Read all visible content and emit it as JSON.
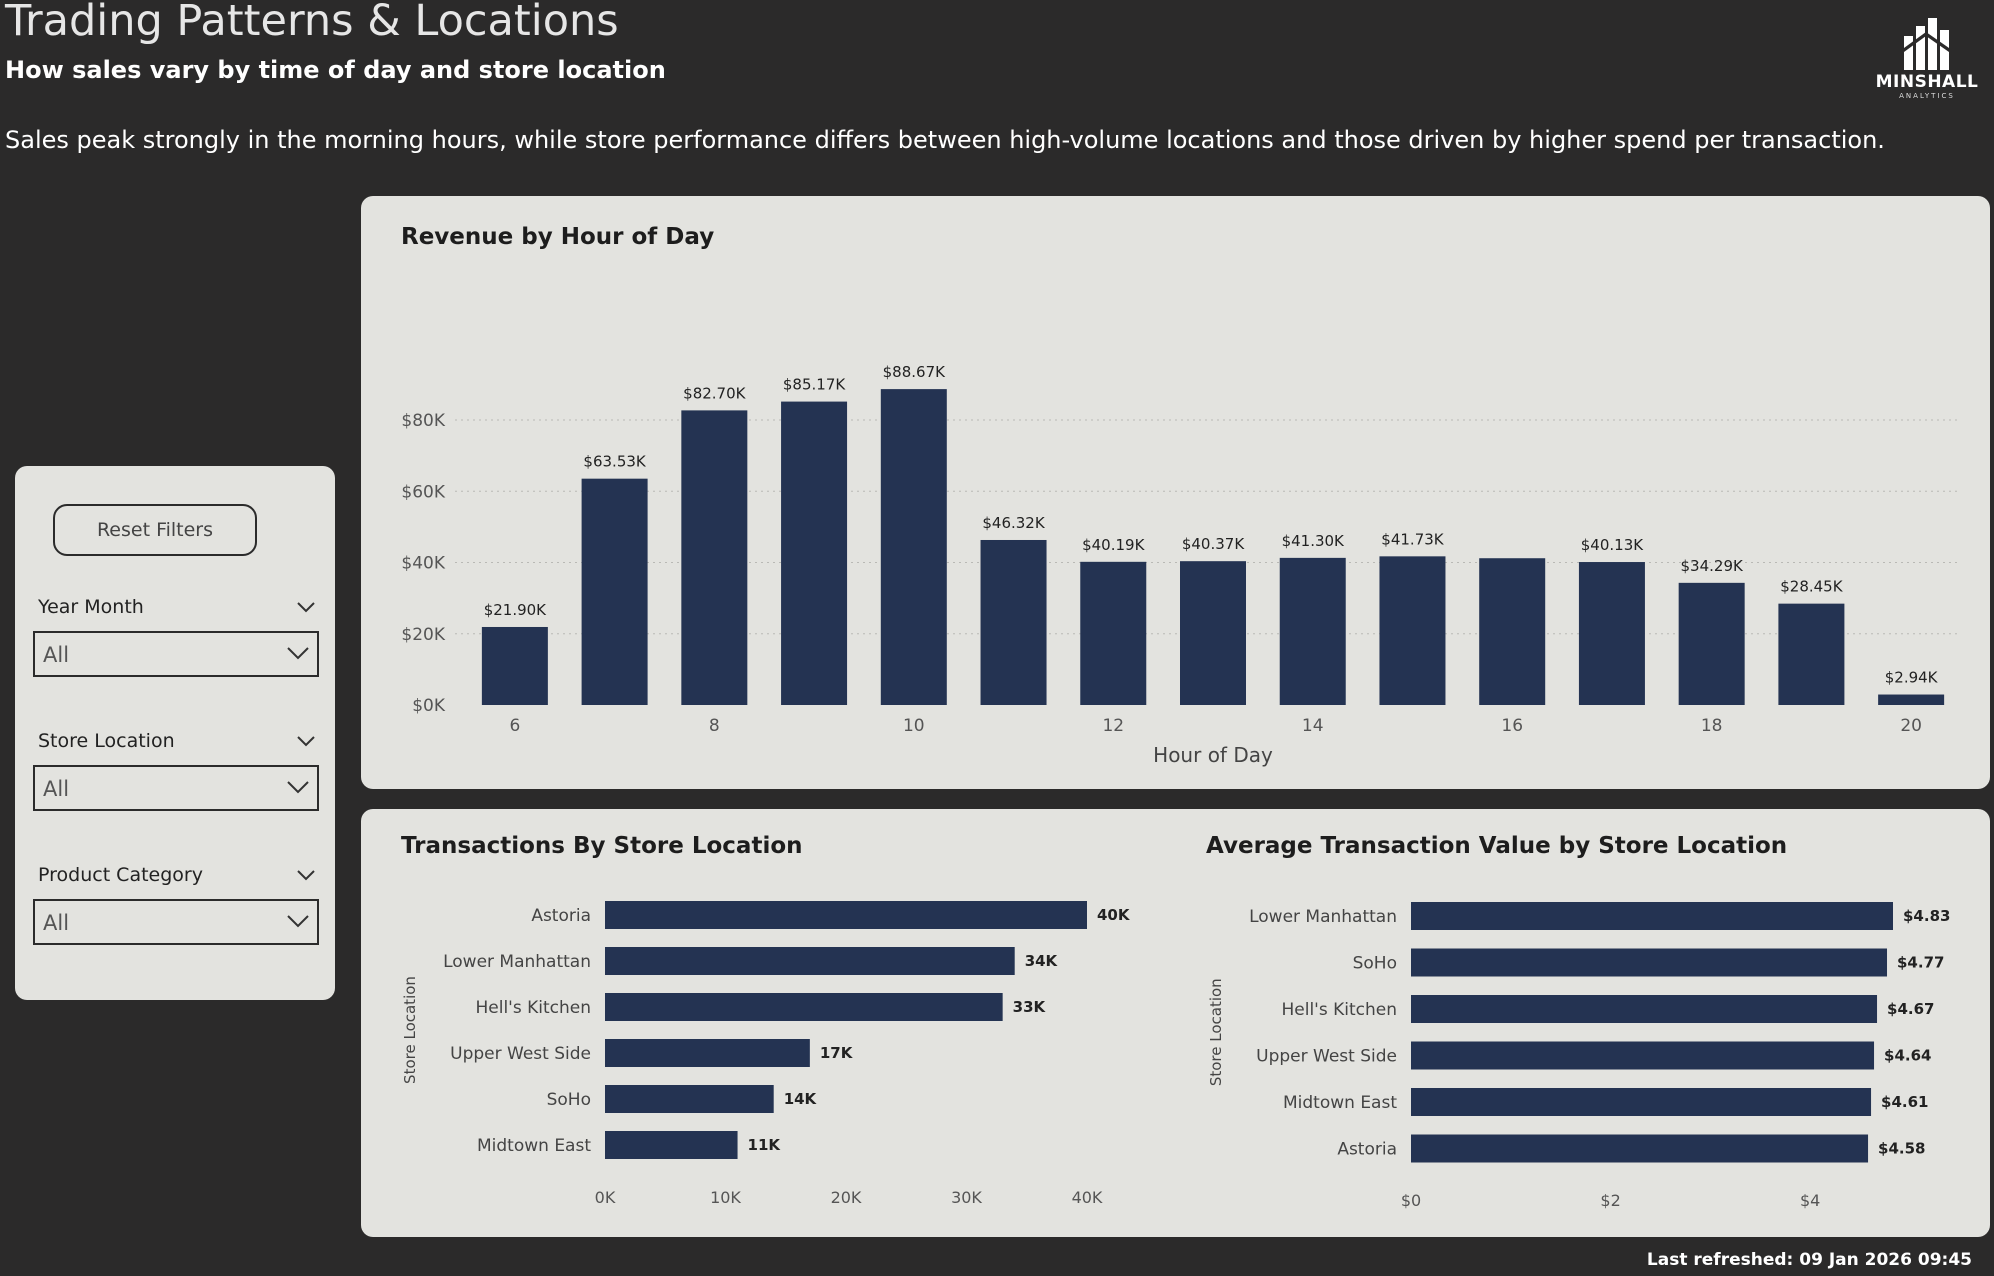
{
  "header": {
    "title": "Trading Patterns & Locations",
    "subtitle": "How sales vary by time of day and store location",
    "description": "Sales peak strongly in the morning hours, while store performance differs between high-volume locations and those driven by higher spend per transaction."
  },
  "logo": {
    "brand": "MINSHALL",
    "sub": "ANALYTICS"
  },
  "filters": {
    "reset_label": "Reset Filters",
    "slicers": [
      {
        "label": "Year Month",
        "value": "All"
      },
      {
        "label": "Store Location",
        "value": "All"
      },
      {
        "label": "Product Category",
        "value": "All"
      }
    ]
  },
  "colors": {
    "bar": "#243352",
    "panel": "#e3e3df",
    "background": "#2b2a2a"
  },
  "footer": {
    "last_refreshed": "Last refreshed: 09 Jan 2026 09:45"
  },
  "chart_data": [
    {
      "type": "bar",
      "title": "Revenue by Hour of Day",
      "xlabel": "Hour of Day",
      "ylabel": "",
      "categories": [
        6,
        7,
        8,
        9,
        10,
        11,
        12,
        13,
        14,
        15,
        16,
        17,
        18,
        19,
        20
      ],
      "values": [
        21900,
        63530,
        82700,
        85170,
        88670,
        46320,
        40190,
        40370,
        41300,
        41730,
        41200,
        40130,
        34290,
        28450,
        2940
      ],
      "data_labels": [
        "$21.90K",
        "$63.53K",
        "$82.70K",
        "$85.17K",
        "$88.67K",
        "$46.32K",
        "$40.19K",
        "$40.37K",
        "$41.30K",
        "$41.73K",
        "",
        "$40.13K",
        "$34.29K",
        "$28.45K",
        "$2.94K"
      ],
      "x_ticks": [
        "6",
        "8",
        "10",
        "12",
        "14",
        "16",
        "18",
        "20"
      ],
      "y_ticks": [
        "$0K",
        "$20K",
        "$40K",
        "$60K",
        "$80K"
      ],
      "ylim": [
        0,
        96000
      ],
      "grid": true
    },
    {
      "type": "bar",
      "orientation": "horizontal",
      "title": "Transactions By Store Location",
      "ylabel": "Store Location",
      "categories": [
        "Astoria",
        "Lower Manhattan",
        "Hell's Kitchen",
        "Upper West Side",
        "SoHo",
        "Midtown East"
      ],
      "values": [
        40000,
        34000,
        33000,
        17000,
        14000,
        11000
      ],
      "data_labels": [
        "40K",
        "34K",
        "33K",
        "17K",
        "14K",
        "11K"
      ],
      "x_ticks": [
        "0K",
        "10K",
        "20K",
        "30K",
        "40K"
      ],
      "xlim": [
        0,
        40000
      ]
    },
    {
      "type": "bar",
      "orientation": "horizontal",
      "title": "Average Transaction Value by Store Location",
      "ylabel": "Store Location",
      "categories": [
        "Lower Manhattan",
        "SoHo",
        "Hell's Kitchen",
        "Upper West Side",
        "Midtown East",
        "Astoria"
      ],
      "values": [
        4.83,
        4.77,
        4.67,
        4.64,
        4.61,
        4.58
      ],
      "data_labels": [
        "$4.83",
        "$4.77",
        "$4.67",
        "$4.64",
        "$4.61",
        "$4.58"
      ],
      "x_ticks": [
        "$0",
        "$2",
        "$4"
      ],
      "xlim": [
        0,
        4.83
      ]
    }
  ]
}
